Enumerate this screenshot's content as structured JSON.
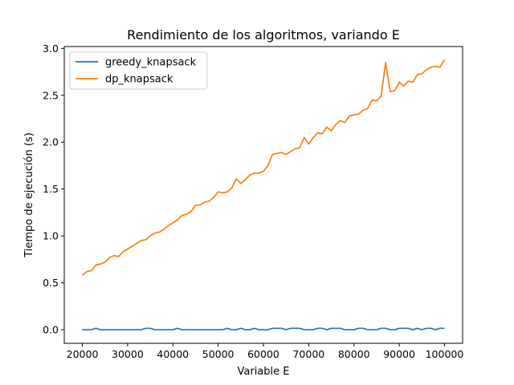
{
  "chart_data": {
    "type": "line",
    "title": "Rendimiento de los algoritmos, variando E",
    "xlabel": "Variable E",
    "ylabel": "Tiempo de ejecución (s)",
    "xlim": [
      16000,
      104000
    ],
    "ylim": [
      -0.145,
      3.02
    ],
    "xticks": [
      20000,
      30000,
      40000,
      50000,
      60000,
      70000,
      80000,
      90000,
      100000
    ],
    "yticks": [
      0.0,
      0.5,
      1.0,
      1.5,
      2.0,
      2.5,
      3.0
    ],
    "xtick_labels": [
      "20000",
      "30000",
      "40000",
      "50000",
      "60000",
      "70000",
      "80000",
      "90000",
      "100000"
    ],
    "ytick_labels": [
      "0.0",
      "0.5",
      "1.0",
      "1.5",
      "2.0",
      "2.5",
      "3.0"
    ],
    "grid": false,
    "legend_position": "top-left",
    "series": [
      {
        "name": "greedy_knapsack",
        "color": "#1f77b4",
        "x": [
          20000,
          21000,
          22000,
          23000,
          24000,
          25000,
          26000,
          27000,
          28000,
          29000,
          30000,
          31000,
          32000,
          33000,
          34000,
          35000,
          36000,
          37000,
          38000,
          39000,
          40000,
          41000,
          42000,
          43000,
          44000,
          45000,
          46000,
          47000,
          48000,
          49000,
          50000,
          51000,
          52000,
          53000,
          54000,
          55000,
          56000,
          57000,
          58000,
          59000,
          60000,
          61000,
          62000,
          63000,
          64000,
          65000,
          66000,
          67000,
          68000,
          69000,
          70000,
          71000,
          72000,
          73000,
          74000,
          75000,
          76000,
          77000,
          78000,
          79000,
          80000,
          81000,
          82000,
          83000,
          84000,
          85000,
          86000,
          87000,
          88000,
          89000,
          90000,
          91000,
          92000,
          93000,
          94000,
          95000,
          96000,
          97000,
          98000,
          99000,
          100000
        ],
        "values": [
          0.0,
          0.0,
          0.0,
          0.015,
          0.0,
          0.0,
          0.0,
          0.0,
          0.0,
          0.0,
          0.0,
          0.0,
          0.0,
          0.0,
          0.015,
          0.015,
          0.0,
          0.0,
          0.0,
          0.0,
          0.0,
          0.015,
          0.0,
          0.0,
          0.0,
          0.0,
          0.0,
          0.0,
          0.0,
          0.0,
          0.0,
          0.0,
          0.015,
          0.0,
          0.0,
          0.015,
          0.0,
          0.0,
          0.015,
          0.0,
          0.0,
          0.0,
          0.015,
          0.015,
          0.015,
          0.0,
          0.015,
          0.015,
          0.015,
          0.0,
          0.0,
          0.0,
          0.015,
          0.015,
          0.0,
          0.015,
          0.015,
          0.015,
          0.0,
          0.0,
          0.0,
          0.015,
          0.015,
          0.0,
          0.0,
          0.0,
          0.015,
          0.015,
          0.0,
          0.0,
          0.015,
          0.015,
          0.015,
          0.0,
          0.015,
          0.0,
          0.015,
          0.015,
          0.0,
          0.015,
          0.015
        ]
      },
      {
        "name": "dp_knapsack",
        "color": "#ff7f0e",
        "x": [
          20000,
          21000,
          22000,
          23000,
          24000,
          25000,
          26000,
          27000,
          28000,
          29000,
          30000,
          31000,
          32000,
          33000,
          34000,
          35000,
          36000,
          37000,
          38000,
          39000,
          40000,
          41000,
          42000,
          43000,
          44000,
          45000,
          46000,
          47000,
          48000,
          49000,
          50000,
          51000,
          52000,
          53000,
          54000,
          55000,
          56000,
          57000,
          58000,
          59000,
          60000,
          61000,
          62000,
          63000,
          64000,
          65000,
          66000,
          67000,
          68000,
          69000,
          70000,
          71000,
          72000,
          73000,
          74000,
          75000,
          76000,
          77000,
          78000,
          79000,
          80000,
          81000,
          82000,
          83000,
          84000,
          85000,
          86000,
          87000,
          88000,
          89000,
          90000,
          91000,
          92000,
          93000,
          94000,
          95000,
          96000,
          97000,
          98000,
          99000,
          100000
        ],
        "values": [
          0.58,
          0.62,
          0.63,
          0.69,
          0.7,
          0.72,
          0.77,
          0.79,
          0.78,
          0.83,
          0.86,
          0.89,
          0.92,
          0.95,
          0.96,
          1.0,
          1.03,
          1.04,
          1.07,
          1.11,
          1.14,
          1.17,
          1.22,
          1.23,
          1.26,
          1.33,
          1.33,
          1.36,
          1.37,
          1.41,
          1.47,
          1.46,
          1.47,
          1.51,
          1.61,
          1.56,
          1.6,
          1.65,
          1.67,
          1.67,
          1.69,
          1.75,
          1.87,
          1.88,
          1.89,
          1.87,
          1.9,
          1.93,
          1.94,
          2.05,
          1.98,
          2.05,
          2.1,
          2.09,
          2.16,
          2.12,
          2.19,
          2.23,
          2.21,
          2.28,
          2.29,
          2.3,
          2.34,
          2.36,
          2.45,
          2.44,
          2.49,
          2.85,
          2.54,
          2.55,
          2.64,
          2.6,
          2.65,
          2.64,
          2.72,
          2.73,
          2.77,
          2.8,
          2.81,
          2.8,
          2.88
        ]
      }
    ]
  }
}
